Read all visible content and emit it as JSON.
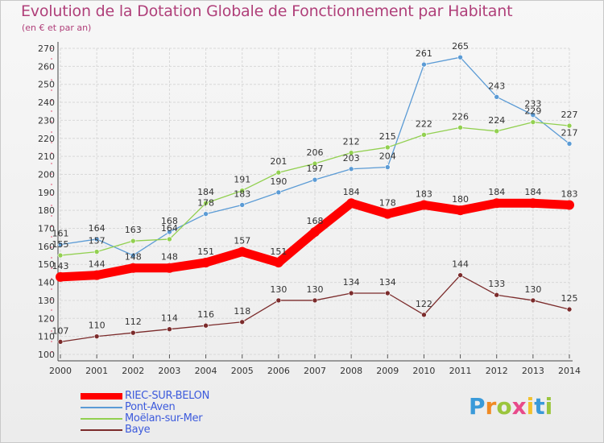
{
  "header": {
    "title": "Evolution de la Dotation Globale de Fonctionnement par Habitant",
    "subtitle": "(en € et par an)"
  },
  "logo": {
    "text": "Proxiti",
    "letters": [
      {
        "ch": "P",
        "color": "#3a9ad9"
      },
      {
        "ch": "r",
        "color": "#f08a24"
      },
      {
        "ch": "o",
        "color": "#9bc53d"
      },
      {
        "ch": "x",
        "color": "#e84a8a"
      },
      {
        "ch": "i",
        "color": "#f2c12e"
      },
      {
        "ch": "t",
        "color": "#3a9ad9"
      },
      {
        "ch": "i",
        "color": "#9bc53d"
      }
    ]
  },
  "chart_data": {
    "type": "line",
    "title": "Evolution de la Dotation Globale de Fonctionnement par Habitant",
    "subtitle": "(en € et par an)",
    "x": [
      2000,
      2001,
      2002,
      2003,
      2004,
      2005,
      2006,
      2007,
      2008,
      2009,
      2010,
      2011,
      2012,
      2013,
      2014
    ],
    "ylim": [
      100,
      270
    ],
    "yticks": [
      100,
      110,
      120,
      130,
      140,
      150,
      160,
      170,
      180,
      190,
      200,
      210,
      220,
      230,
      240,
      250,
      260,
      270
    ],
    "grid": true,
    "legend_position": "bottom-left",
    "series": [
      {
        "name": "RIEC-SUR-BELON",
        "color": "#ff0000",
        "values": [
          143,
          144,
          148,
          148,
          151,
          157,
          151,
          168,
          184,
          178,
          183,
          180,
          184,
          184,
          183
        ]
      },
      {
        "name": "Pont-Aven",
        "color": "#5b9bd5",
        "values": [
          161,
          164,
          155,
          168,
          178,
          183,
          190,
          197,
          203,
          204,
          261,
          265,
          243,
          233,
          217
        ]
      },
      {
        "name": "Moëlan-sur-Mer",
        "color": "#92d050",
        "values": [
          155,
          157,
          163,
          164,
          184,
          191,
          201,
          206,
          212,
          215,
          222,
          226,
          224,
          229,
          227
        ]
      },
      {
        "name": "Baye",
        "color": "#7b2b2b",
        "values": [
          107,
          110,
          112,
          114,
          116,
          118,
          130,
          130,
          134,
          134,
          122,
          144,
          133,
          130,
          125
        ]
      }
    ],
    "labels": [
      [
        143,
        144,
        148,
        148,
        151,
        157,
        151,
        168,
        184,
        178,
        183,
        180,
        184,
        184,
        183
      ],
      [
        161,
        164,
        "",
        168,
        178,
        183,
        190,
        197,
        203,
        204,
        261,
        265,
        243,
        233,
        217
      ],
      [
        155,
        157,
        163,
        164,
        184,
        191,
        201,
        206,
        212,
        215,
        222,
        226,
        224,
        229,
        227
      ],
      [
        107,
        110,
        112,
        114,
        116,
        118,
        130,
        130,
        134,
        134,
        122,
        144,
        133,
        130,
        125
      ]
    ]
  }
}
